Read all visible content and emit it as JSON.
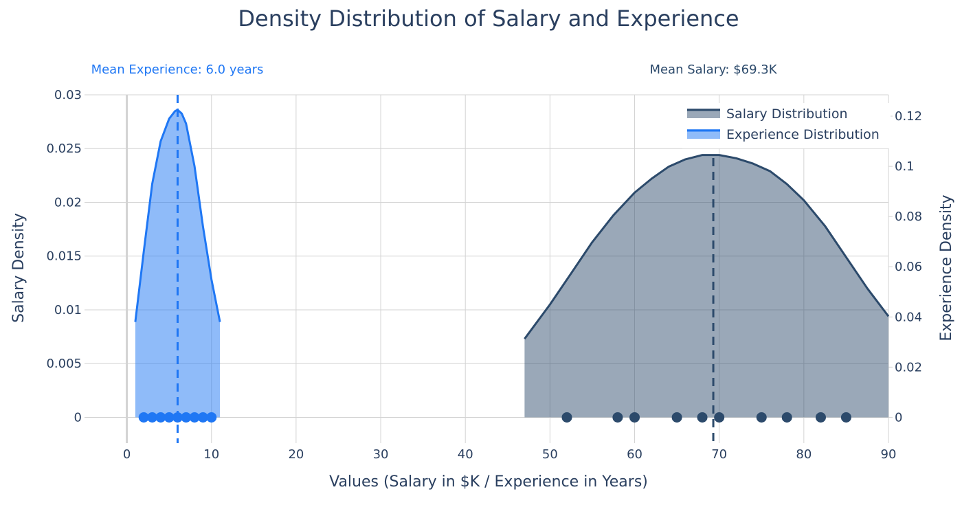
{
  "colors": {
    "salary": "#2c4a6b",
    "salary_fill": "rgba(44,74,107,0.48)",
    "experience": "#1f77f4",
    "experience_fill": "rgba(31,119,244,0.5)",
    "grid": "#d3d3d3",
    "text": "#2a3f5f"
  },
  "chart_data": {
    "type": "area",
    "title": "Density Distribution of Salary and Experience",
    "xlabel": "Values (Salary in $K / Experience in Years)",
    "ylabel": "Salary Density",
    "y2label": "Experience Density",
    "xlim": [
      -5,
      90
    ],
    "ylim": [
      -0.0024,
      0.03
    ],
    "y2lim": [
      -0.0103,
      0.1285
    ],
    "x_ticks": [
      0,
      10,
      20,
      30,
      40,
      50,
      60,
      70,
      80,
      90
    ],
    "y_ticks": [
      0,
      0.005,
      0.01,
      0.015,
      0.02,
      0.025,
      0.03
    ],
    "y_tick_labels": [
      "0",
      "0.005",
      "0.01",
      "0.015",
      "0.02",
      "0.025",
      "0.03"
    ],
    "y2_ticks": [
      0,
      0.02,
      0.04,
      0.06,
      0.08,
      0.1,
      0.12
    ],
    "y2_tick_labels": [
      "0",
      "0.02",
      "0.04",
      "0.06",
      "0.08",
      "0.1",
      "0.12"
    ],
    "grid": true,
    "legend_position": "top-right",
    "legend": [
      "Salary Distribution",
      "Experience Distribution"
    ],
    "series": [
      {
        "name": "Salary Distribution",
        "axis": "y",
        "x": [
          47,
          50,
          52.5,
          55,
          57.5,
          60,
          62,
          64,
          66,
          68,
          70,
          72,
          74,
          76,
          78,
          80,
          82.5,
          85,
          87.5,
          90
        ],
        "y": [
          0.0073,
          0.0105,
          0.0134,
          0.0163,
          0.0188,
          0.0209,
          0.0222,
          0.0233,
          0.024,
          0.0244,
          0.0244,
          0.0241,
          0.0236,
          0.0229,
          0.0217,
          0.0202,
          0.0178,
          0.0149,
          0.012,
          0.0094
        ]
      },
      {
        "name": "Experience Distribution",
        "axis": "y2",
        "x": [
          1,
          2,
          3,
          4,
          5,
          5.7,
          6,
          6.5,
          7,
          8,
          9,
          10,
          11
        ],
        "y": [
          0.038,
          0.066,
          0.093,
          0.11,
          0.119,
          0.122,
          0.1225,
          0.121,
          0.117,
          0.1,
          0.076,
          0.055,
          0.038
        ]
      }
    ],
    "salary_points": [
      52,
      58,
      60,
      65,
      68,
      70,
      75,
      78,
      82,
      85
    ],
    "experience_points": [
      2,
      3,
      4,
      5,
      6,
      7,
      8,
      9,
      10
    ],
    "mean_salary": 69.3,
    "mean_experience": 6.0,
    "annotations": {
      "mean_experience": "Mean Experience: 6.0 years",
      "mean_salary": "Mean Salary: $69.3K"
    }
  }
}
